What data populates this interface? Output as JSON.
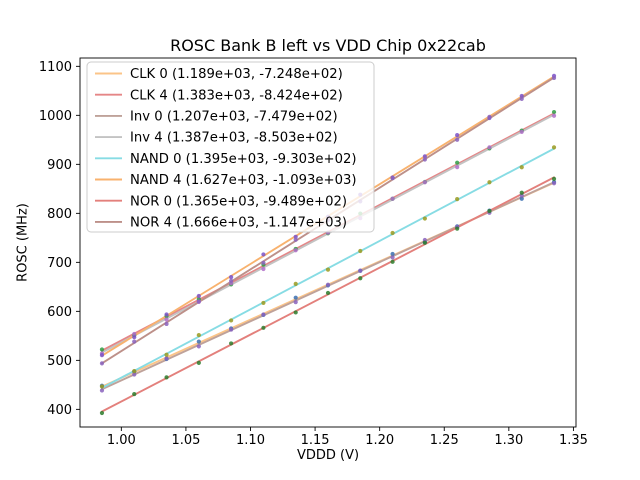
{
  "chart_data": {
    "type": "scatter",
    "title": "ROSC Bank B left vs VDD Chip 0x22cab",
    "xlabel": "VDDD (V)",
    "ylabel": "ROSC (MHz)",
    "xlim": [
      0.968,
      1.352
    ],
    "ylim": [
      364,
      1117
    ],
    "xticks": [
      1.0,
      1.05,
      1.1,
      1.15,
      1.2,
      1.25,
      1.3,
      1.35
    ],
    "yticks": [
      400,
      500,
      600,
      700,
      800,
      900,
      1000,
      1100
    ],
    "grid": false,
    "legend_position": "upper left",
    "x": [
      0.985,
      1.01,
      1.035,
      1.06,
      1.085,
      1.11,
      1.135,
      1.16,
      1.185,
      1.21,
      1.235,
      1.26,
      1.285,
      1.31,
      1.335
    ],
    "fit_model": "y = slope * x + intercept",
    "series": [
      {
        "name": "CLK 0",
        "label": "CLK 0 (1.189e+03, -7.248e+02)",
        "slope": 1189,
        "intercept": -724.8,
        "line_color": "#fbc488",
        "dot_color": "#3a6fb0"
      },
      {
        "name": "CLK 4",
        "label": "CLK 4 (1.383e+03, -8.424e+02)",
        "slope": 1383,
        "intercept": -842.4,
        "line_color": "#e58687",
        "dot_color": "#2f9e44"
      },
      {
        "name": "Inv 0",
        "label": "Inv 0 (1.207e+03, -7.479e+02)",
        "slope": 1207,
        "intercept": -747.9,
        "line_color": "#bfa29a",
        "dot_color": "#8a63bd"
      },
      {
        "name": "Inv 4",
        "label": "Inv 4 (1.387e+03, -8.503e+02)",
        "slope": 1387,
        "intercept": -850.3,
        "line_color": "#c3c3c3",
        "dot_color": "#b06fc9"
      },
      {
        "name": "NAND 0",
        "label": "NAND 0 (1.395e+03, -9.303e+02)",
        "slope": 1395,
        "intercept": -930.3,
        "line_color": "#87dce4",
        "dot_color": "#9a9a20"
      },
      {
        "name": "NAND 4",
        "label": "NAND 4 (1.627e+03, -1.093e+03)",
        "slope": 1627,
        "intercept": -1093,
        "line_color": "#f8b26e",
        "dot_color": "#7b52c9"
      },
      {
        "name": "NOR 0",
        "label": "NOR 0 (1.365e+03, -9.489e+02)",
        "slope": 1365,
        "intercept": -948.9,
        "line_color": "#e3807c",
        "dot_color": "#2d7d2d"
      },
      {
        "name": "NOR 4",
        "label": "NOR 4 (1.666e+03, -1.147e+03)",
        "slope": 1666,
        "intercept": -1147,
        "line_color": "#bd9089",
        "dot_color": "#8a63bd"
      }
    ]
  }
}
